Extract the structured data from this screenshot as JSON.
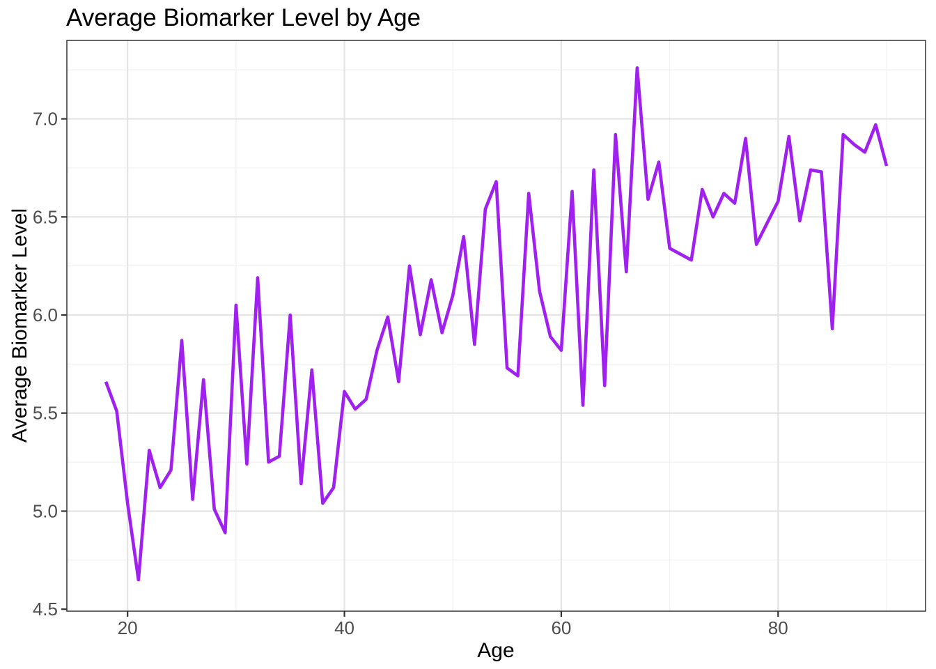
{
  "title": "Average Biomarker Level by Age",
  "x_axis": {
    "label": "Age",
    "tick_labels": [
      "20",
      "40",
      "60",
      "80"
    ],
    "tick_values": [
      20,
      40,
      60,
      80
    ],
    "minor_tick_values": [
      30,
      50,
      70,
      90
    ],
    "lim": [
      14.4,
      93.6
    ]
  },
  "y_axis": {
    "label": "Average Biomarker Level",
    "tick_labels": [
      "4.5",
      "5.0",
      "5.5",
      "6.0",
      "6.5",
      "7.0"
    ],
    "tick_values": [
      4.5,
      5.0,
      5.5,
      6.0,
      6.5,
      7.0
    ],
    "minor_tick_values": [
      4.75,
      5.25,
      5.75,
      6.25,
      6.75,
      7.25
    ],
    "lim": [
      4.49,
      7.4
    ]
  },
  "chart_data": {
    "type": "line",
    "title": "Average Biomarker Level by Age",
    "xlabel": "Age",
    "ylabel": "Average Biomarker Level",
    "series_name": "Average Biomarker Level",
    "x": [
      18,
      19,
      20,
      21,
      22,
      23,
      24,
      25,
      26,
      27,
      28,
      29,
      30,
      31,
      32,
      33,
      34,
      35,
      36,
      37,
      38,
      39,
      40,
      41,
      42,
      43,
      44,
      45,
      46,
      47,
      48,
      49,
      50,
      51,
      52,
      53,
      54,
      55,
      56,
      57,
      58,
      59,
      60,
      61,
      62,
      63,
      64,
      65,
      66,
      67,
      68,
      69,
      70,
      71,
      72,
      73,
      74,
      75,
      76,
      77,
      78,
      79,
      80,
      81,
      82,
      83,
      84,
      85,
      86,
      87,
      88,
      89,
      90
    ],
    "y": [
      5.66,
      5.51,
      5.04,
      4.65,
      5.31,
      5.12,
      5.21,
      5.87,
      5.06,
      5.67,
      5.01,
      4.89,
      6.05,
      5.24,
      6.19,
      5.25,
      5.28,
      6.0,
      5.14,
      5.72,
      5.04,
      5.12,
      5.61,
      5.52,
      5.57,
      5.82,
      5.99,
      5.66,
      6.25,
      5.9,
      6.18,
      5.91,
      6.1,
      6.4,
      5.85,
      6.54,
      6.68,
      5.73,
      5.69,
      6.62,
      6.12,
      5.89,
      5.82,
      6.63,
      5.54,
      6.74,
      5.64,
      6.92,
      6.22,
      7.26,
      6.59,
      6.78,
      6.34,
      6.31,
      6.28,
      6.64,
      6.5,
      6.62,
      6.57,
      6.9,
      6.36,
      6.47,
      6.58,
      6.91,
      6.48,
      6.74,
      6.73,
      5.93,
      6.92,
      6.87,
      6.83,
      6.97,
      6.76
    ],
    "xlim": [
      14.4,
      93.6
    ],
    "ylim": [
      4.49,
      7.4
    ],
    "grid": true,
    "legend": false
  },
  "style": {
    "line_color": "#A020F0",
    "grid_major_color": "#E4E4E4",
    "grid_minor_color": "#F1F1F1",
    "panel_border_color": "#333333",
    "tick_mark_color": "#333333",
    "tick_label_color": "#4D4D4D",
    "title_color": "#000000",
    "axis_title_color": "#000000",
    "background_color": "#FFFFFF"
  }
}
